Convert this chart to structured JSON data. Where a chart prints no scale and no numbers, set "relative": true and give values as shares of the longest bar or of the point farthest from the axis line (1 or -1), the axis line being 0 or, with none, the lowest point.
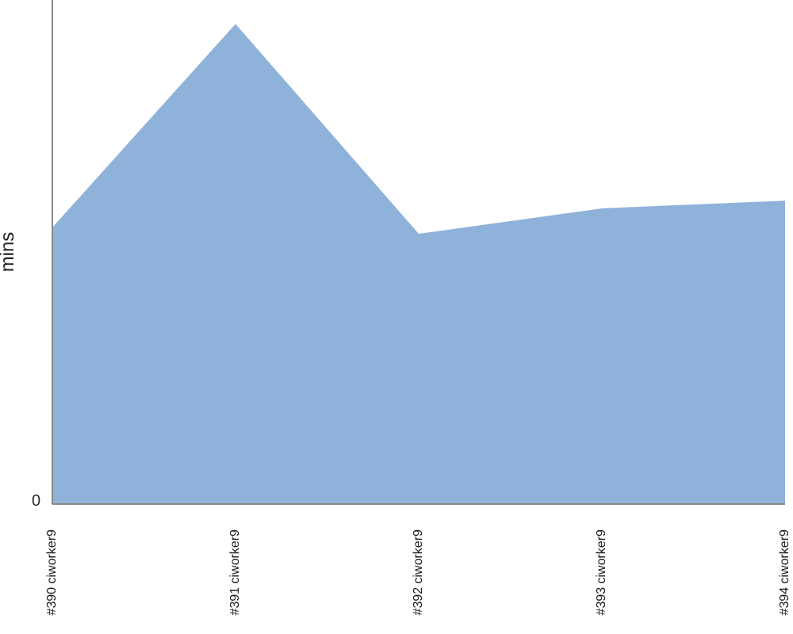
{
  "chart_data": {
    "type": "area",
    "relative": true,
    "ylabel": "mins",
    "annotations": [
      "0"
    ],
    "categories": [
      "#390 ciworker9",
      "#391 ciworker9",
      "#392 ciworker9",
      "#393 ciworker9",
      "#394 ciworker9"
    ],
    "color": "#8fb2db",
    "values": [
      0.576,
      1,
      0.563,
      0.616,
      0.632
    ],
    "grid": false
  }
}
